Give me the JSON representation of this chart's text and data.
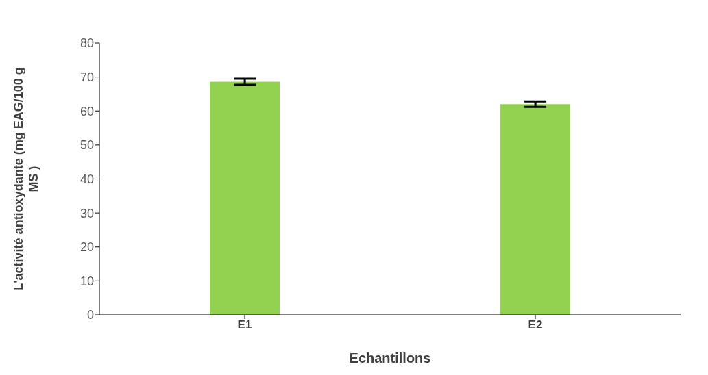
{
  "chart_data": {
    "type": "bar",
    "xlabel": "Echantillons",
    "ylabel": "L'activité antioxydante (mg EAG/100 g MS )",
    "categories": [
      "E1",
      "E2"
    ],
    "values": [
      68.6,
      62.0
    ],
    "errors": [
      0.9,
      0.8
    ],
    "color": "#92d050",
    "ylim": [
      0,
      80
    ],
    "yticks": [
      0,
      10,
      20,
      30,
      40,
      50,
      60,
      70,
      80
    ],
    "grid": false,
    "legend": false
  }
}
